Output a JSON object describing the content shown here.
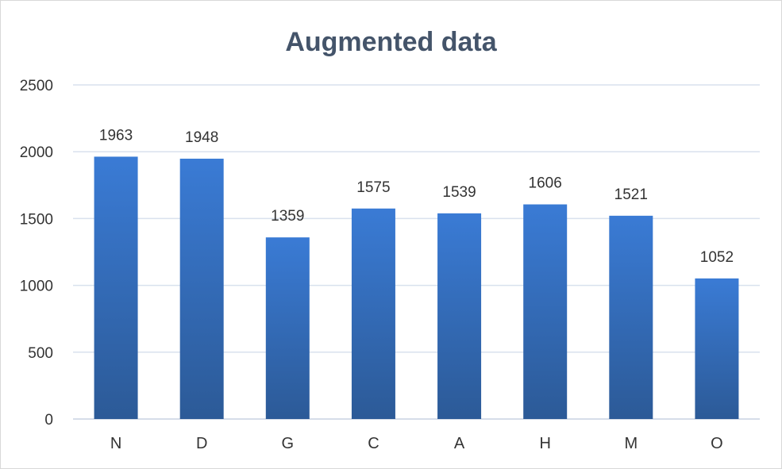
{
  "chart_data": {
    "type": "bar",
    "title": "Augmented data",
    "categories": [
      "N",
      "D",
      "G",
      "C",
      "A",
      "H",
      "M",
      "O"
    ],
    "values": [
      1963,
      1948,
      1359,
      1575,
      1539,
      1606,
      1521,
      1052
    ],
    "ylim": [
      0,
      2500
    ],
    "yticks": [
      0,
      500,
      1000,
      1500,
      2000,
      2500
    ],
    "xlabel": "",
    "ylabel": "",
    "grid": true,
    "legend": "none",
    "bar_color_top": "#3a7bd5",
    "bar_color_bottom": "#2c5a97",
    "title_color": "#44546a"
  }
}
